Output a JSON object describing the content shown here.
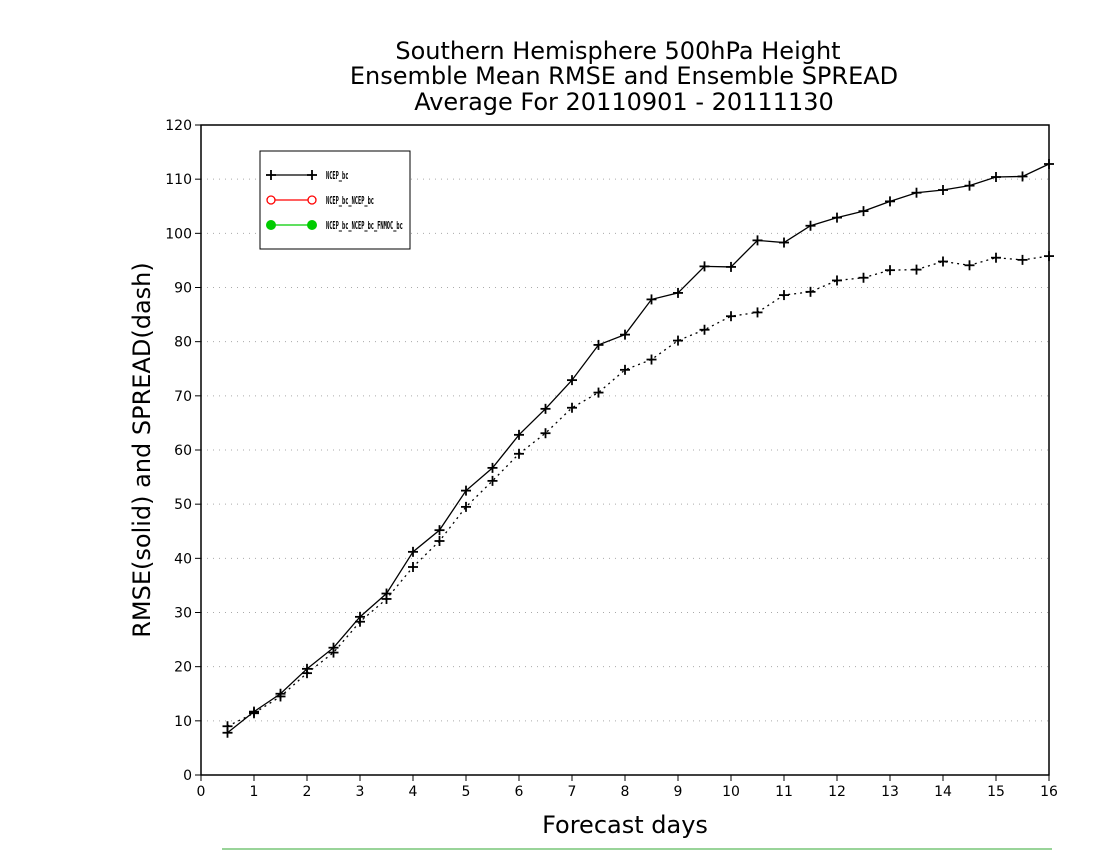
{
  "chart_data": {
    "type": "line",
    "title_lines": [
      "Southern Hemisphere 500hPa Height",
      "Ensemble Mean RMSE and Ensemble SPREAD",
      "Average For 20110901 - 20111130"
    ],
    "xlabel": "Forecast days",
    "ylabel": "RMSE(solid) and SPREAD(dash)",
    "xlim": [
      0,
      16
    ],
    "ylim": [
      0,
      120
    ],
    "xticks": [
      0,
      1,
      2,
      3,
      4,
      5,
      6,
      7,
      8,
      9,
      10,
      11,
      12,
      13,
      14,
      15,
      16
    ],
    "yticks": [
      0,
      10,
      20,
      30,
      40,
      50,
      60,
      70,
      80,
      90,
      100,
      110,
      120
    ],
    "grid": "horizontal dotted",
    "legend_position": "top-left",
    "x": [
      0.5,
      1,
      1.5,
      2,
      2.5,
      3,
      3.5,
      4,
      4.5,
      5,
      5.5,
      6,
      6.5,
      7,
      7.5,
      8,
      8.5,
      9,
      9.5,
      10,
      10.5,
      11,
      11.5,
      12,
      12.5,
      13,
      13.5,
      14,
      14.5,
      15,
      15.5,
      16
    ],
    "series": [
      {
        "name": "NCEP_bc",
        "role": "RMSE",
        "style": "solid",
        "marker": "plus",
        "color": "#000000",
        "values": [
          7.8,
          11.7,
          15.0,
          19.6,
          23.5,
          29.2,
          33.5,
          41.2,
          45.2,
          52.5,
          56.7,
          62.8,
          67.6,
          72.9,
          79.4,
          81.3,
          87.8,
          89.0,
          93.9,
          93.8,
          98.7,
          98.3,
          101.4,
          102.9,
          104.1,
          105.9,
          107.5,
          108.0,
          108.8,
          110.4,
          110.5,
          112.8
        ]
      },
      {
        "name": "NCEP_bc",
        "role": "SPREAD",
        "style": "dash",
        "marker": "plus",
        "color": "#000000",
        "values": [
          9.0,
          11.4,
          14.5,
          18.8,
          22.6,
          28.3,
          32.5,
          38.4,
          43.2,
          49.5,
          54.3,
          59.3,
          63.1,
          67.8,
          70.6,
          74.8,
          76.7,
          80.2,
          82.2,
          84.7,
          85.4,
          88.6,
          89.2,
          91.3,
          91.8,
          93.2,
          93.3,
          94.8,
          94.1,
          95.5,
          95.1,
          95.8
        ]
      }
    ],
    "legend": [
      {
        "label": "NCEP_bc",
        "color": "#000000",
        "marker": "plus"
      },
      {
        "label": "NCEP_bc_NCEP_bc",
        "color": "#ff0000",
        "marker": "open-circle"
      },
      {
        "label": "NCEP_bc_NCEP_bc_FNMOC_bc",
        "color": "#00cc00",
        "marker": "filled-circle"
      }
    ]
  }
}
